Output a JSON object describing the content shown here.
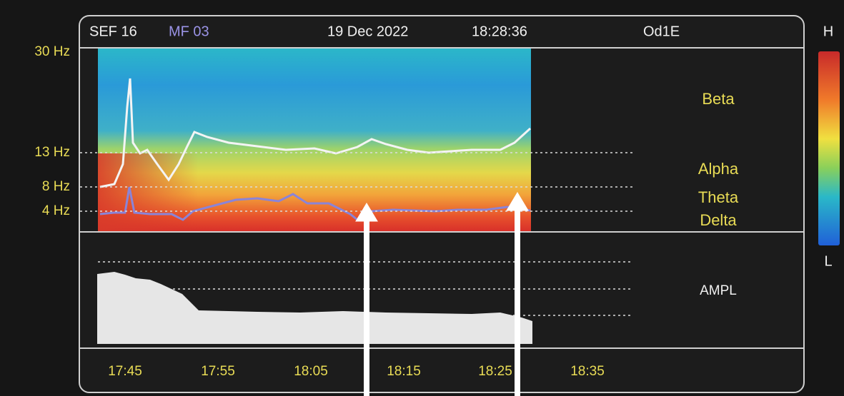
{
  "header": {
    "sef": "SEF 16",
    "mf": "MF 03",
    "date": "19 Dec 2022",
    "time": "18:28:36",
    "channel": "Od1E"
  },
  "frequency_labels": [
    "30 Hz",
    "13 Hz",
    "8 Hz",
    "4 Hz"
  ],
  "band_labels": [
    "Beta",
    "Alpha",
    "Theta",
    "Delta"
  ],
  "amplitude_label": "AMPL",
  "time_labels": [
    "17:45",
    "17:55",
    "18:05",
    "18:15",
    "18:25",
    "18:35"
  ],
  "color_scale": {
    "high": "H",
    "low": "L"
  }
}
